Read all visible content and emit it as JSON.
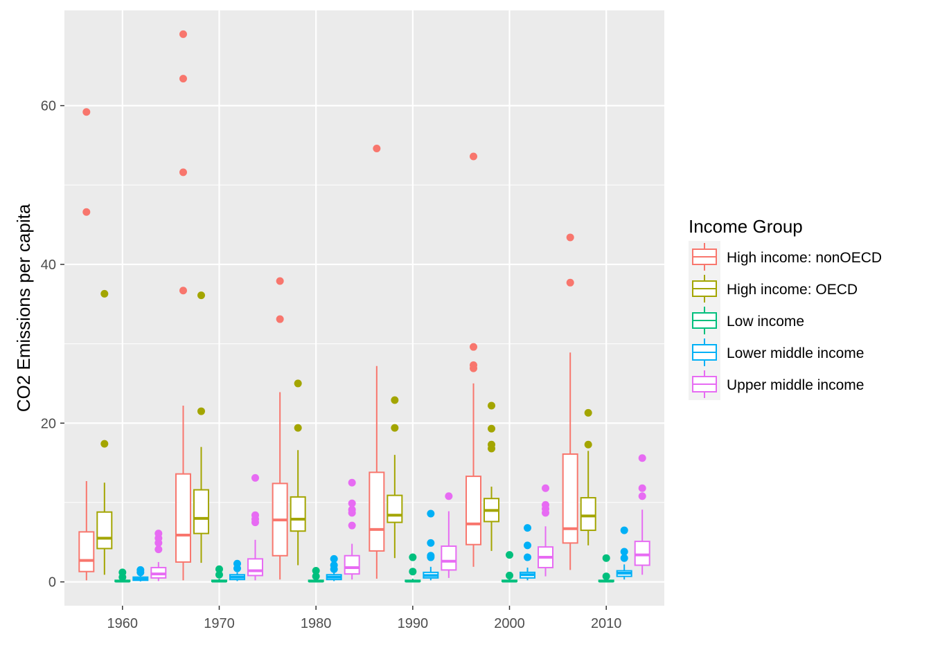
{
  "chart_data": {
    "type": "box",
    "title": "",
    "xlabel": "",
    "ylabel": "CO2 Emissions per capita",
    "ylim": [
      -3,
      72
    ],
    "y_ticks": [
      0,
      20,
      40,
      60
    ],
    "x_ticks": [
      "1960",
      "1970",
      "1980",
      "1990",
      "2000",
      "2010"
    ],
    "grid": true,
    "legend": {
      "title": "Income Group",
      "position": "right",
      "entries": [
        "High income: nonOECD",
        "High income: OECD",
        "Low income",
        "Lower middle income",
        "Upper middle income"
      ]
    },
    "colors": {
      "High income: nonOECD": "#F8766D",
      "High income: OECD": "#A3A500",
      "Low income": "#00BF7D",
      "Lower middle income": "#00B0F6",
      "Upper middle income": "#E76BF3"
    },
    "panel_background": "#EBEBEB",
    "gridline_color": "#FFFFFF",
    "series": [
      {
        "name": "High income: nonOECD",
        "boxes": [
          {
            "x": "1960",
            "lower_whisker": 0.2,
            "q1": 1.3,
            "median": 2.7,
            "q3": 6.3,
            "upper_whisker": 12.7,
            "outliers": [
              46.6,
              59.2
            ]
          },
          {
            "x": "1970",
            "lower_whisker": 0.2,
            "q1": 2.5,
            "median": 5.9,
            "q3": 13.6,
            "upper_whisker": 22.2,
            "outliers": [
              36.7,
              51.6,
              63.4,
              69.0
            ]
          },
          {
            "x": "1980",
            "lower_whisker": 0.3,
            "q1": 3.3,
            "median": 7.8,
            "q3": 12.4,
            "upper_whisker": 23.9,
            "outliers": [
              33.1,
              37.9
            ]
          },
          {
            "x": "1990",
            "lower_whisker": 0.4,
            "q1": 3.9,
            "median": 6.6,
            "q3": 13.8,
            "upper_whisker": 27.2,
            "outliers": [
              54.6
            ]
          },
          {
            "x": "2000",
            "lower_whisker": 1.9,
            "q1": 4.7,
            "median": 7.3,
            "q3": 13.3,
            "upper_whisker": 25.0,
            "outliers": [
              26.9,
              27.3,
              29.6,
              53.6
            ]
          },
          {
            "x": "2010",
            "lower_whisker": 1.5,
            "q1": 4.9,
            "median": 6.7,
            "q3": 16.1,
            "upper_whisker": 28.9,
            "outliers": [
              37.7,
              43.4
            ]
          }
        ]
      },
      {
        "name": "High income: OECD",
        "boxes": [
          {
            "x": "1960",
            "lower_whisker": 0.9,
            "q1": 4.2,
            "median": 5.5,
            "q3": 8.8,
            "upper_whisker": 12.5,
            "outliers": [
              17.4,
              36.3
            ]
          },
          {
            "x": "1970",
            "lower_whisker": 2.4,
            "q1": 6.1,
            "median": 8.0,
            "q3": 11.6,
            "upper_whisker": 17.0,
            "outliers": [
              21.5,
              36.1
            ]
          },
          {
            "x": "1980",
            "lower_whisker": 2.1,
            "q1": 6.4,
            "median": 7.9,
            "q3": 10.7,
            "upper_whisker": 16.6,
            "outliers": [
              19.4,
              25.0
            ]
          },
          {
            "x": "1990",
            "lower_whisker": 3.0,
            "q1": 7.5,
            "median": 8.4,
            "q3": 10.9,
            "upper_whisker": 16.0,
            "outliers": [
              19.4,
              22.9
            ]
          },
          {
            "x": "2000",
            "lower_whisker": 3.9,
            "q1": 7.6,
            "median": 9.0,
            "q3": 10.5,
            "upper_whisker": 12.0,
            "outliers": [
              16.8,
              17.3,
              19.3,
              22.2
            ]
          },
          {
            "x": "2010",
            "lower_whisker": 4.6,
            "q1": 6.5,
            "median": 8.3,
            "q3": 10.6,
            "upper_whisker": 16.5,
            "outliers": [
              17.3,
              21.3
            ]
          }
        ]
      },
      {
        "name": "Low income",
        "boxes": [
          {
            "x": "1960",
            "lower_whisker": 0.0,
            "q1": 0.05,
            "median": 0.1,
            "q3": 0.2,
            "upper_whisker": 0.4,
            "outliers": [
              0.6,
              1.2
            ]
          },
          {
            "x": "1970",
            "lower_whisker": 0.0,
            "q1": 0.05,
            "median": 0.1,
            "q3": 0.2,
            "upper_whisker": 0.4,
            "outliers": [
              0.9,
              1.6
            ]
          },
          {
            "x": "1980",
            "lower_whisker": 0.0,
            "q1": 0.05,
            "median": 0.1,
            "q3": 0.2,
            "upper_whisker": 0.4,
            "outliers": [
              0.7,
              1.4
            ]
          },
          {
            "x": "1990",
            "lower_whisker": 0.0,
            "q1": 0.05,
            "median": 0.1,
            "q3": 0.2,
            "upper_whisker": 0.4,
            "outliers": [
              1.3,
              3.1
            ]
          },
          {
            "x": "2000",
            "lower_whisker": 0.0,
            "q1": 0.05,
            "median": 0.1,
            "q3": 0.2,
            "upper_whisker": 0.4,
            "outliers": [
              0.8,
              3.4
            ]
          },
          {
            "x": "2010",
            "lower_whisker": 0.0,
            "q1": 0.05,
            "median": 0.1,
            "q3": 0.2,
            "upper_whisker": 0.4,
            "outliers": [
              0.7,
              3.0
            ]
          }
        ]
      },
      {
        "name": "Lower middle income",
        "boxes": [
          {
            "x": "1960",
            "lower_whisker": 0.05,
            "q1": 0.2,
            "median": 0.35,
            "q3": 0.6,
            "upper_whisker": 1.0,
            "outliers": [
              1.2,
              1.5
            ]
          },
          {
            "x": "1970",
            "lower_whisker": 0.1,
            "q1": 0.3,
            "median": 0.6,
            "q3": 0.9,
            "upper_whisker": 1.2,
            "outliers": [
              1.7,
              2.3
            ]
          },
          {
            "x": "1980",
            "lower_whisker": 0.1,
            "q1": 0.3,
            "median": 0.6,
            "q3": 0.9,
            "upper_whisker": 1.3,
            "outliers": [
              1.6,
              2.1,
              2.9
            ]
          },
          {
            "x": "1990",
            "lower_whisker": 0.2,
            "q1": 0.5,
            "median": 0.8,
            "q3": 1.2,
            "upper_whisker": 1.9,
            "outliers": [
              3.1,
              3.3,
              4.9,
              8.6
            ]
          },
          {
            "x": "2000",
            "lower_whisker": 0.2,
            "q1": 0.5,
            "median": 0.9,
            "q3": 1.2,
            "upper_whisker": 1.8,
            "outliers": [
              3.1,
              4.6,
              6.8
            ]
          },
          {
            "x": "2010",
            "lower_whisker": 0.3,
            "q1": 0.7,
            "median": 1.1,
            "q3": 1.4,
            "upper_whisker": 2.2,
            "outliers": [
              3.0,
              3.8,
              6.5
            ]
          }
        ]
      },
      {
        "name": "Upper middle income",
        "boxes": [
          {
            "x": "1960",
            "lower_whisker": 0.1,
            "q1": 0.5,
            "median": 1.0,
            "q3": 1.8,
            "upper_whisker": 2.5,
            "outliers": [
              4.1,
              4.9,
              5.5,
              6.1
            ]
          },
          {
            "x": "1970",
            "lower_whisker": 0.2,
            "q1": 0.8,
            "median": 1.4,
            "q3": 2.9,
            "upper_whisker": 5.3,
            "outliers": [
              7.5,
              7.9,
              8.4,
              13.1
            ]
          },
          {
            "x": "1980",
            "lower_whisker": 0.3,
            "q1": 1.0,
            "median": 1.8,
            "q3": 3.3,
            "upper_whisker": 4.8,
            "outliers": [
              7.1,
              8.7,
              9.1,
              9.9,
              12.5
            ]
          },
          {
            "x": "1990",
            "lower_whisker": 0.5,
            "q1": 1.5,
            "median": 2.6,
            "q3": 4.5,
            "upper_whisker": 8.9,
            "outliers": [
              10.8
            ]
          },
          {
            "x": "2000",
            "lower_whisker": 0.7,
            "q1": 1.8,
            "median": 3.1,
            "q3": 4.4,
            "upper_whisker": 7.0,
            "outliers": [
              8.7,
              9.2,
              9.7,
              11.8
            ]
          },
          {
            "x": "2010",
            "lower_whisker": 0.9,
            "q1": 2.1,
            "median": 3.4,
            "q3": 5.1,
            "upper_whisker": 9.1,
            "outliers": [
              10.8,
              11.8,
              15.6
            ]
          }
        ]
      }
    ]
  }
}
